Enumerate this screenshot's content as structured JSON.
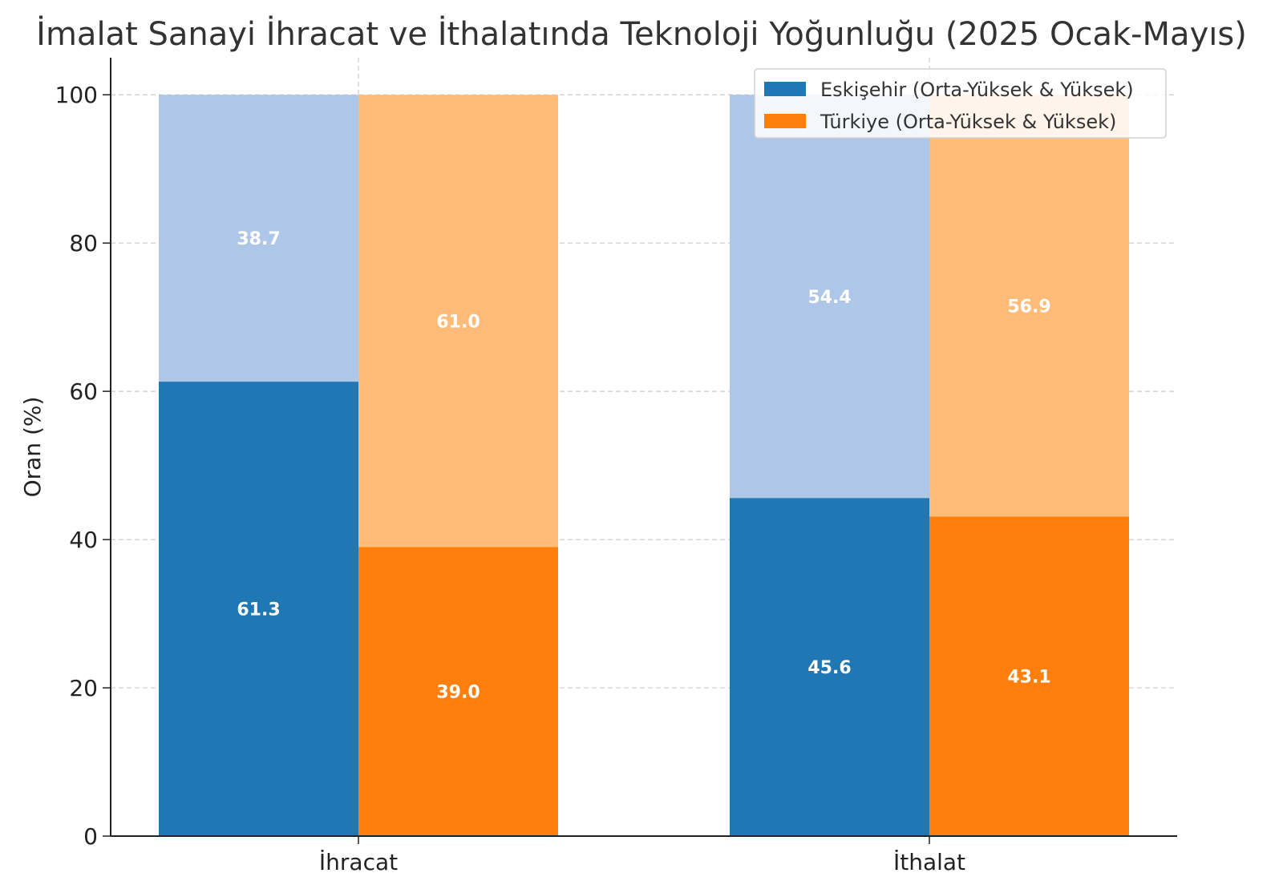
{
  "chart_data": {
    "type": "bar",
    "stacked": true,
    "title": "İmalat Sanayi İhracat ve İthalatında Teknoloji Yoğunluğu (2025 Ocak-Mayıs)",
    "xlabel": "",
    "ylabel": "Oran (%)",
    "ylim": [
      0,
      105
    ],
    "yticks": [
      0,
      20,
      40,
      60,
      80,
      100
    ],
    "grid": true,
    "legend_position": "top-right",
    "categories": [
      "İhracat",
      "İthalat"
    ],
    "series": [
      {
        "name": "Eskişehir (Orta-Yüksek & Yüksek)",
        "color": "#1f77b4",
        "rest_color": "#aec7e8",
        "values": [
          61.3,
          45.6
        ],
        "rest_values": [
          38.7,
          54.4
        ]
      },
      {
        "name": "Türkiye (Orta-Yüksek & Yüksek)",
        "color": "#ff7f0e",
        "rest_color": "#ffbb78",
        "values": [
          39.0,
          43.1
        ],
        "rest_values": [
          61.0,
          56.9
        ]
      }
    ]
  }
}
